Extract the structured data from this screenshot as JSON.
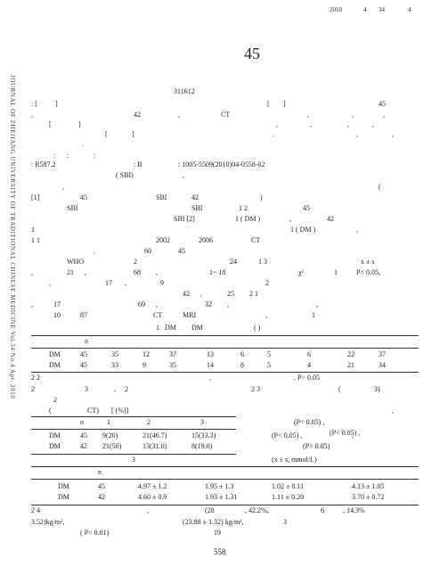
{
  "header": [
    "2010",
    "4",
    "34",
    "4"
  ],
  "title": "45",
  "side_text": "JOURNAL OF ZHEJIANG UNIVERSITY OF TRADITIONAL CHINESE MEDICINE Vol.34 No.4 Apr. 2010",
  "lines": [
    [
      "311612"
    ],
    [
      ": [",
      "]",
      "[",
      "]",
      "45"
    ],
    [
      ",",
      "42",
      ",",
      "CT",
      ",",
      ",",
      ","
    ],
    [
      "[",
      "]",
      ",",
      ",",
      ",",
      ","
    ],
    [
      "[",
      "]",
      ".",
      ",",
      ","
    ],
    [
      "."
    ],
    [
      ":",
      ":",
      ":"
    ],
    [
      ": R587.2",
      ": B",
      ": 1005-5509(2010)04-0558-02"
    ],
    [
      "( SBI)",
      ","
    ],
    [
      ",",
      "("
    ],
    [
      "[1]",
      "45",
      "SBI",
      "42",
      ")"
    ],
    [
      "SBI",
      "SBI",
      "1 2",
      "45"
    ],
    [
      "SBI [2]",
      "1 ( DM )",
      ",",
      "42"
    ],
    [
      "1",
      "1 ( DM )",
      ","
    ],
    [
      "1 1",
      "2002",
      "2006",
      "CT"
    ],
    [
      ",",
      "60",
      "45"
    ],
    [
      "WHO",
      "2",
      "24",
      "1 3",
      "x ± s"
    ],
    [
      ",",
      "21",
      ",",
      "68",
      ",",
      "1~ 18",
      "χ²",
      "1",
      "P< 0.05,"
    ],
    [
      ",",
      "17",
      ",",
      "9",
      "2"
    ],
    [
      "42",
      ",",
      "25",
      "2 1"
    ],
    [
      ",",
      "17",
      "69",
      ",",
      "32",
      ",",
      ","
    ],
    [
      "10",
      "87",
      "CT",
      "MRI",
      ",",
      "1"
    ],
    [
      "1",
      "DM",
      "DM",
      "( )"
    ],
    [
      "n"
    ],
    [
      "DM",
      "45",
      "35",
      "12",
      "37",
      "13",
      "6",
      "5",
      "6",
      "22",
      "37"
    ],
    [
      "DM",
      "45",
      "33",
      "9",
      "35",
      "14",
      "8",
      "5",
      "4",
      "21",
      "34"
    ],
    [
      "2 2",
      ",",
      ", P> 0.05"
    ],
    [
      "2",
      "3",
      ",",
      "2",
      "2 3",
      "(",
      "3)"
    ],
    [
      "2"
    ],
    [
      "(",
      "CT)",
      "[ (%)]",
      ","
    ],
    [
      "n",
      "1",
      "2",
      "3",
      "(P< 0.05) ,"
    ],
    [
      "(P< 0.05) ,"
    ],
    [
      "DM",
      "45",
      "9(20)",
      "21(46.7)",
      "15(33.3)",
      "(P< 0.05) ,",
      ","
    ],
    [
      "DM",
      "42",
      "21(50)",
      "13(31.0)",
      "8(19.0)",
      "(P> 0.05)"
    ],
    [
      "3",
      "(x ± s, mmol/L)"
    ],
    [
      "n"
    ],
    [
      "DM",
      "45",
      "4.97 ± 1.2",
      "1.95 ± 1.3",
      "1.02 ± 0.11",
      "4.13 ± 1.05"
    ],
    [
      "DM",
      "42",
      "4.60 ± 0.9",
      "1.93 ± 1.31",
      "1.11 ± 0.20",
      "3.70 ± 0.72"
    ],
    [
      "2 4",
      ",",
      "(28",
      ", 42.2%,",
      "6",
      ", 14.3%"
    ],
    [
      "3.52)kg/m²,",
      "(23.88 ± 1.32) kg/m²,",
      "3"
    ],
    [
      "( P< 0.01)",
      "19"
    ]
  ],
  "page_number": "558"
}
